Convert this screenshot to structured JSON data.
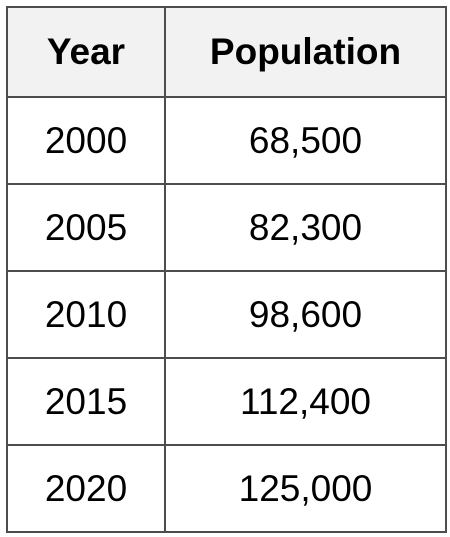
{
  "table": {
    "headers": [
      "Year",
      "Population"
    ],
    "rows": [
      [
        "2000",
        "68,500"
      ],
      [
        "2005",
        "82,300"
      ],
      [
        "2010",
        "98,600"
      ],
      [
        "2015",
        "112,400"
      ],
      [
        "2020",
        "125,000"
      ]
    ]
  },
  "colors": {
    "border": "#4d4d4d",
    "header_background": "#f2f2f2",
    "cell_background": "#ffffff",
    "text": "#000000"
  }
}
